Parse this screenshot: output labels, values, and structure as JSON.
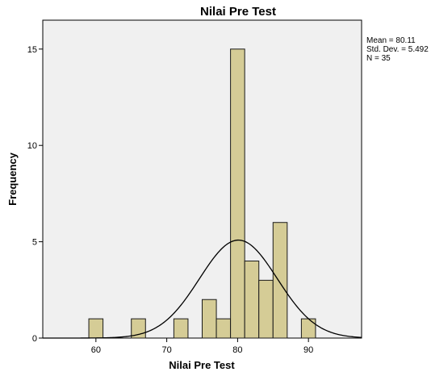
{
  "chart_data": {
    "type": "bar",
    "title": "Nilai Pre Test",
    "xlabel": "Nilai Pre Test",
    "ylabel": "Frequency",
    "xlim": [
      52.5,
      97.5
    ],
    "ylim": [
      0,
      16.5
    ],
    "xticks": [
      60,
      70,
      80,
      90
    ],
    "yticks": [
      0,
      5,
      10,
      15
    ],
    "bin_width": 2,
    "bars": [
      {
        "x": 60,
        "count": 1
      },
      {
        "x": 66,
        "count": 1
      },
      {
        "x": 72,
        "count": 1
      },
      {
        "x": 76,
        "count": 2
      },
      {
        "x": 78,
        "count": 1
      },
      {
        "x": 80,
        "count": 15
      },
      {
        "x": 82,
        "count": 4
      },
      {
        "x": 84,
        "count": 3
      },
      {
        "x": 86,
        "count": 6
      },
      {
        "x": 90,
        "count": 1
      }
    ],
    "normal_curve": {
      "mean": 80.11,
      "std_dev": 5.492,
      "n": 35
    },
    "stats_text": [
      "Mean = 80.11",
      "Std. Dev. = 5.492",
      "N = 35"
    ],
    "grid": false,
    "colors": {
      "bar_fill": "#d5cc96",
      "bar_stroke": "#1a1a1a",
      "plot_bg": "#f0f0f0",
      "curve": "#000000"
    }
  }
}
